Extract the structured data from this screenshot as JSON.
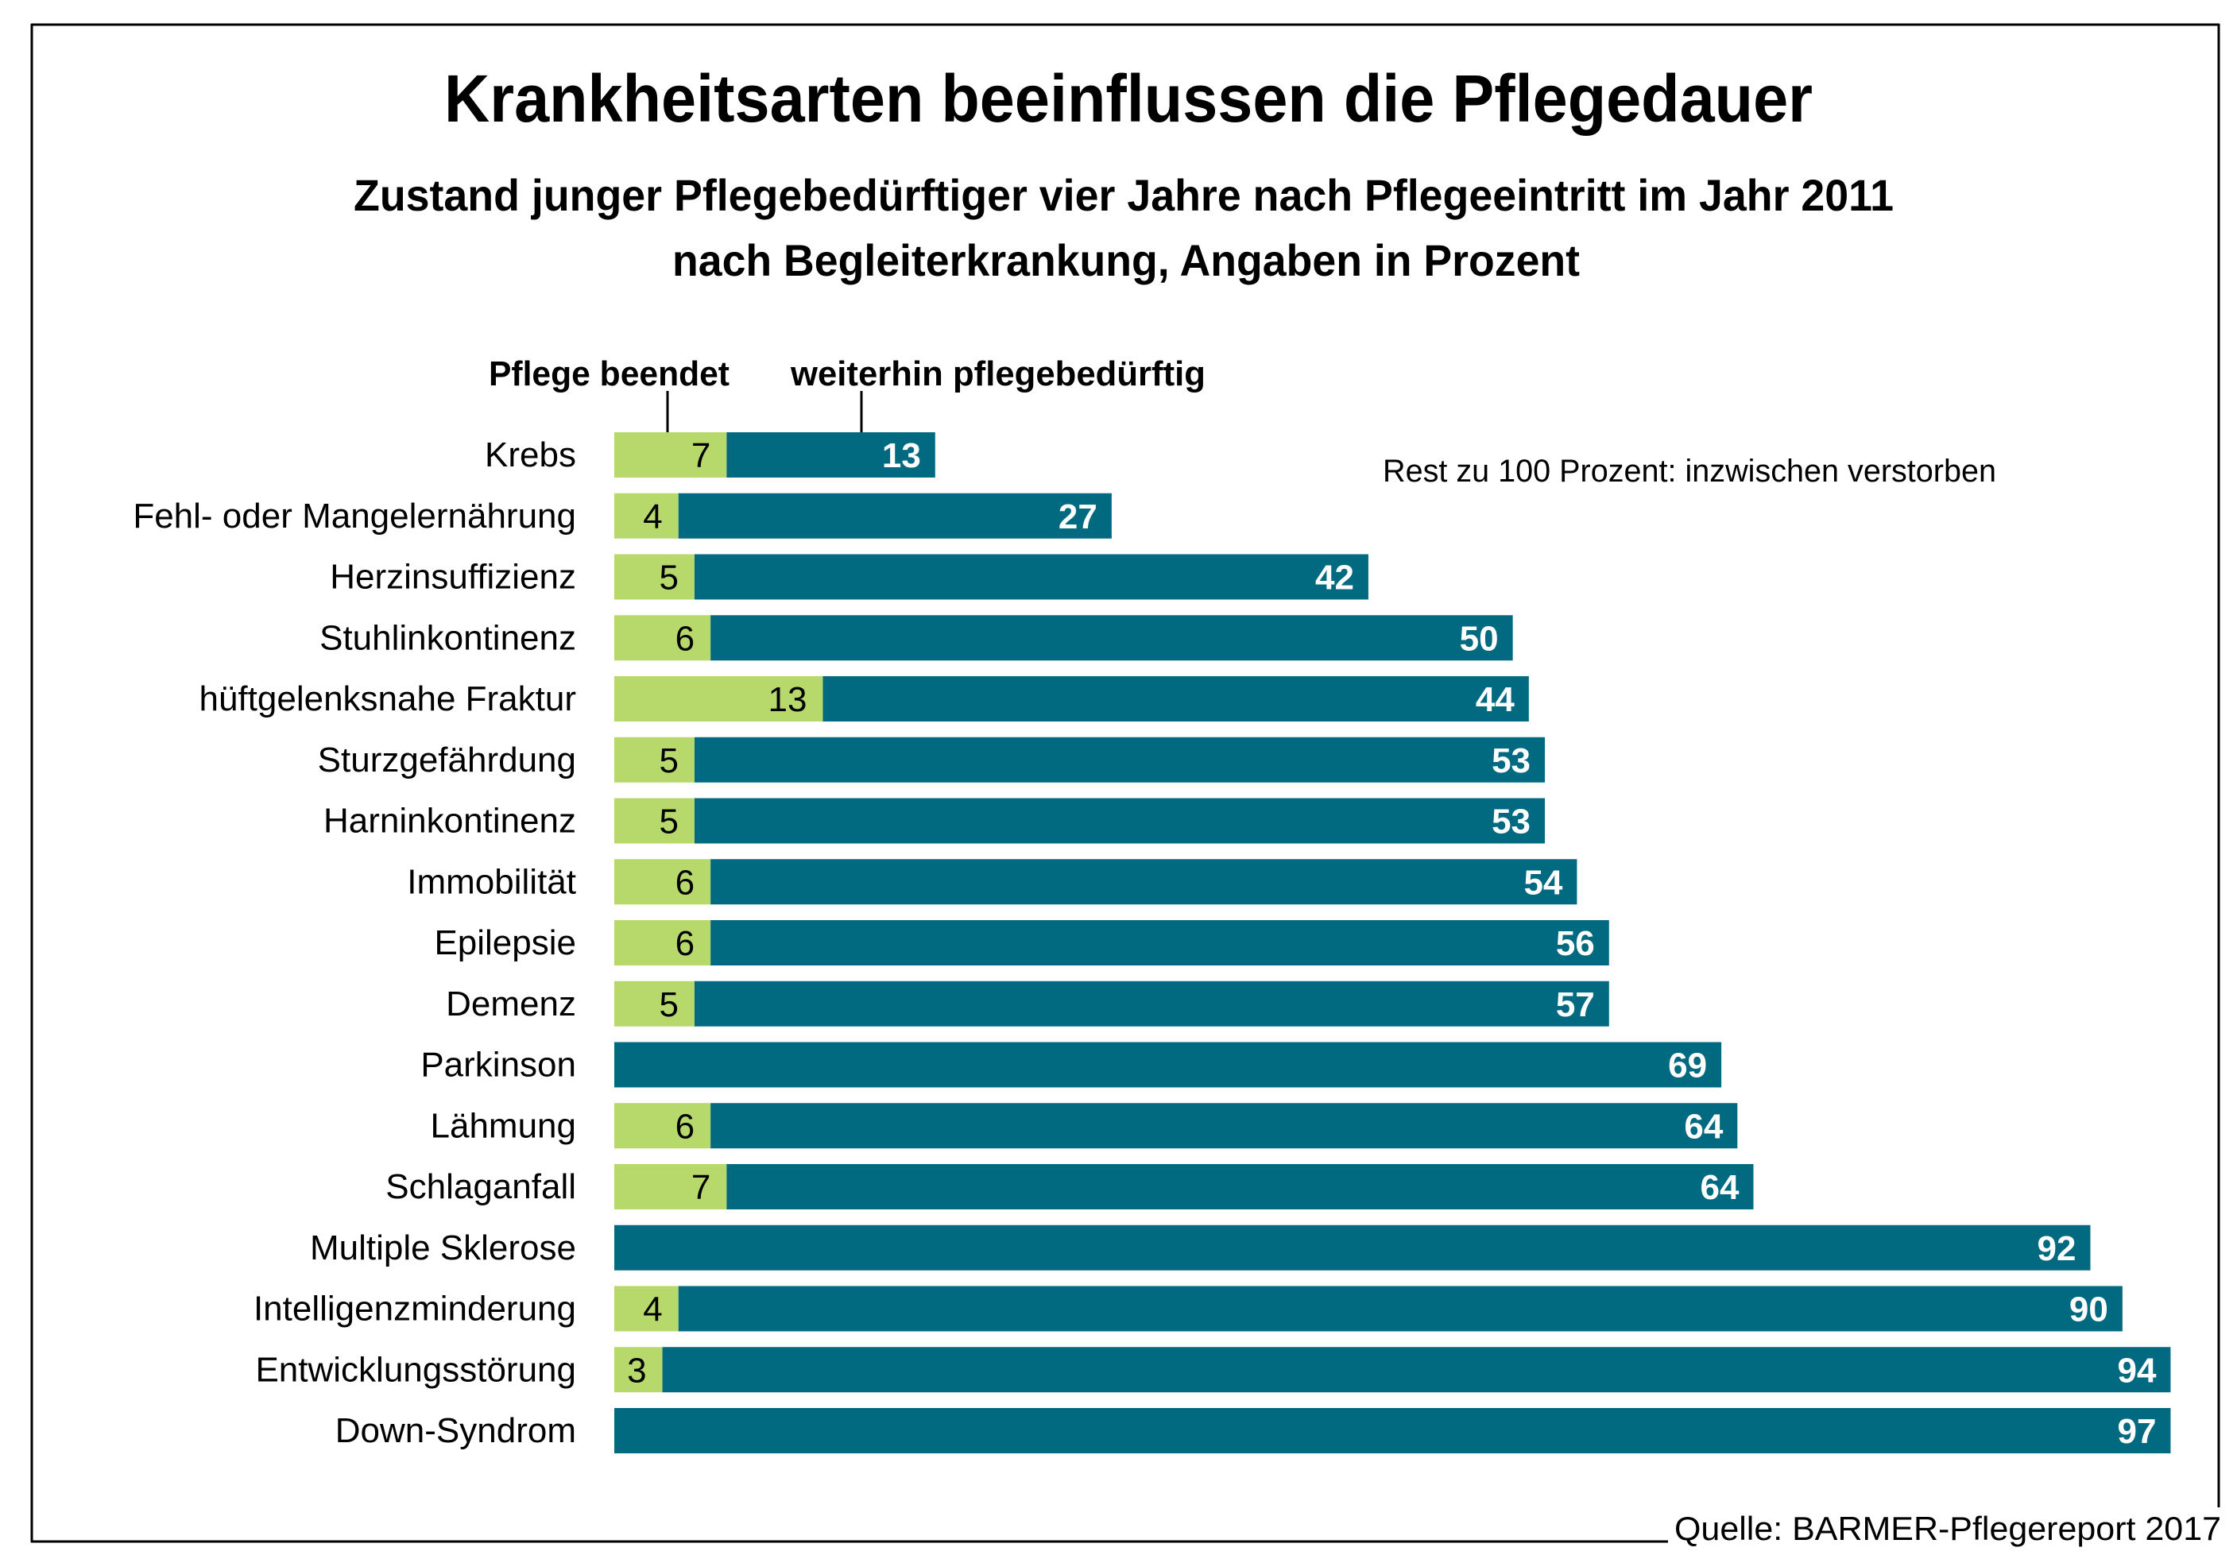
{
  "chart_data": {
    "type": "bar",
    "orientation": "horizontal",
    "stacked": true,
    "title": "Krankheitsarten beeinflussen die Pflegedauer",
    "subtitle_lines": [
      "Zustand junger Pflegebedürftiger vier Jahre nach Pflegeeintritt im Jahr 2011",
      "nach Begleiterkrankung, Angaben in Prozent"
    ],
    "xlabel": "",
    "ylabel": "",
    "xlim": [
      0,
      100
    ],
    "grid": false,
    "legend_position": "top-left",
    "categories": [
      "Krebs",
      "Fehl- oder Mangelernährung",
      "Herzinsuffizienz",
      "Stuhlinkontinenz",
      "hüftgelenksnahe Fraktur",
      "Sturzgefährdung",
      "Harninkontinenz",
      "Immobilität",
      "Epilepsie",
      "Demenz",
      "Parkinson",
      "Lähmung",
      "Schlaganfall",
      "Multiple Sklerose",
      "Intelligenzminderung",
      "Entwicklungsstörung",
      "Down-Syndrom"
    ],
    "series": [
      {
        "name": "Pflege beendet",
        "color": "#b7d86a",
        "label_color": "#000000",
        "values": [
          7,
          4,
          5,
          6,
          13,
          5,
          5,
          6,
          6,
          5,
          null,
          6,
          7,
          null,
          4,
          3,
          null
        ]
      },
      {
        "name": "weiterhin pflegebedürftig",
        "color": "#026a80",
        "label_color": "#ffffff",
        "values": [
          13,
          27,
          42,
          50,
          44,
          53,
          53,
          54,
          56,
          57,
          69,
          64,
          64,
          92,
          90,
          94,
          97
        ]
      }
    ],
    "annotation": "Rest zu 100 Prozent: inzwischen verstorben",
    "source": "Quelle: BARMER-Pflegereport 2017"
  }
}
